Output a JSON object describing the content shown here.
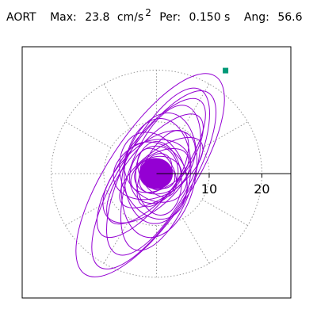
{
  "header": {
    "label": "AORT",
    "max_label": "Max:",
    "max_value": "23.8",
    "max_unit": "cm/s",
    "max_unit_exp": "2",
    "per_label": "Per:",
    "per_value": "0.150 s",
    "ang_label": "Ang:",
    "ang_value": "56.6"
  },
  "colors": {
    "trace": "#9400d3",
    "marker": "#009977",
    "grid": "#999999",
    "axis": "#000000"
  },
  "chart_data": {
    "type": "scatter",
    "title": "",
    "xlabel": "",
    "ylabel": "",
    "polar_grid": true,
    "ring_radii": [
      10,
      20
    ],
    "spoke_step_deg": 30,
    "x_ticks": [
      10,
      20
    ],
    "x_tick_labels": [
      "10",
      "20"
    ],
    "xlim": [
      -25.5,
      25.5
    ],
    "ylim": [
      -24,
      24.5
    ],
    "ellipses": [
      {
        "a": 22.5,
        "b": 8.2,
        "angle": 56.6,
        "cx": -1.2,
        "cy": -0.3
      },
      {
        "a": 19.5,
        "b": 6.8,
        "angle": 58,
        "cx": -0.5,
        "cy": -1.2
      },
      {
        "a": 17.5,
        "b": 6.5,
        "angle": 63,
        "cx": 0.3,
        "cy": 0.4
      },
      {
        "a": 15.8,
        "b": 5.6,
        "angle": 54,
        "cx": -1.0,
        "cy": 1.1
      },
      {
        "a": 14.5,
        "b": 6.2,
        "angle": 70,
        "cx": 0.8,
        "cy": -0.8
      },
      {
        "a": 13,
        "b": 5,
        "angle": 50,
        "cx": -0.3,
        "cy": 0.9
      },
      {
        "a": 12,
        "b": 7,
        "angle": 78,
        "cx": 0.5,
        "cy": -0.3
      },
      {
        "a": 11,
        "b": 5.8,
        "angle": 45,
        "cx": -1.4,
        "cy": -0.6
      },
      {
        "a": 10,
        "b": 6.4,
        "angle": 85,
        "cx": 0.2,
        "cy": 0.5
      },
      {
        "a": 9.5,
        "b": 4.2,
        "angle": 38,
        "cx": 0.9,
        "cy": 0.2
      },
      {
        "a": 8.5,
        "b": 6.2,
        "angle": 110,
        "cx": -0.6,
        "cy": -0.4
      },
      {
        "a": 8,
        "b": 3.6,
        "angle": 62,
        "cx": 1.2,
        "cy": 1.0
      },
      {
        "a": 7.5,
        "b": 5.5,
        "angle": 20,
        "cx": -0.9,
        "cy": 0.8
      },
      {
        "a": 7,
        "b": 4.4,
        "angle": 95,
        "cx": 0.4,
        "cy": -0.9
      },
      {
        "a": 6.5,
        "b": 5.2,
        "angle": 140,
        "cx": -0.2,
        "cy": 0.3
      },
      {
        "a": 6,
        "b": 3.4,
        "angle": 30,
        "cx": 0.6,
        "cy": 0.6
      },
      {
        "a": 5.5,
        "b": 4.6,
        "angle": 75,
        "cx": -0.5,
        "cy": -0.2
      },
      {
        "a": 5,
        "b": 3.2,
        "angle": 120,
        "cx": 0.1,
        "cy": 0.2
      },
      {
        "a": 4.5,
        "b": 3.6,
        "angle": 10,
        "cx": 0.3,
        "cy": -0.3
      },
      {
        "a": 4,
        "b": 2.8,
        "angle": 60,
        "cx": -0.2,
        "cy": 0.1
      },
      {
        "a": 3.5,
        "b": 2.6,
        "angle": 150,
        "cx": 0.2,
        "cy": 0.0
      },
      {
        "a": 3,
        "b": 2.2,
        "angle": 100,
        "cx": -0.1,
        "cy": -0.1
      },
      {
        "a": 2.5,
        "b": 1.8,
        "angle": 40,
        "cx": 0.0,
        "cy": 0.1
      }
    ],
    "core_blob": {
      "rx": 3.2,
      "ry": 3.0,
      "cx": -0.1,
      "cy": 0.0
    },
    "marker_point": {
      "x": 13.1,
      "y": 19.9
    }
  }
}
